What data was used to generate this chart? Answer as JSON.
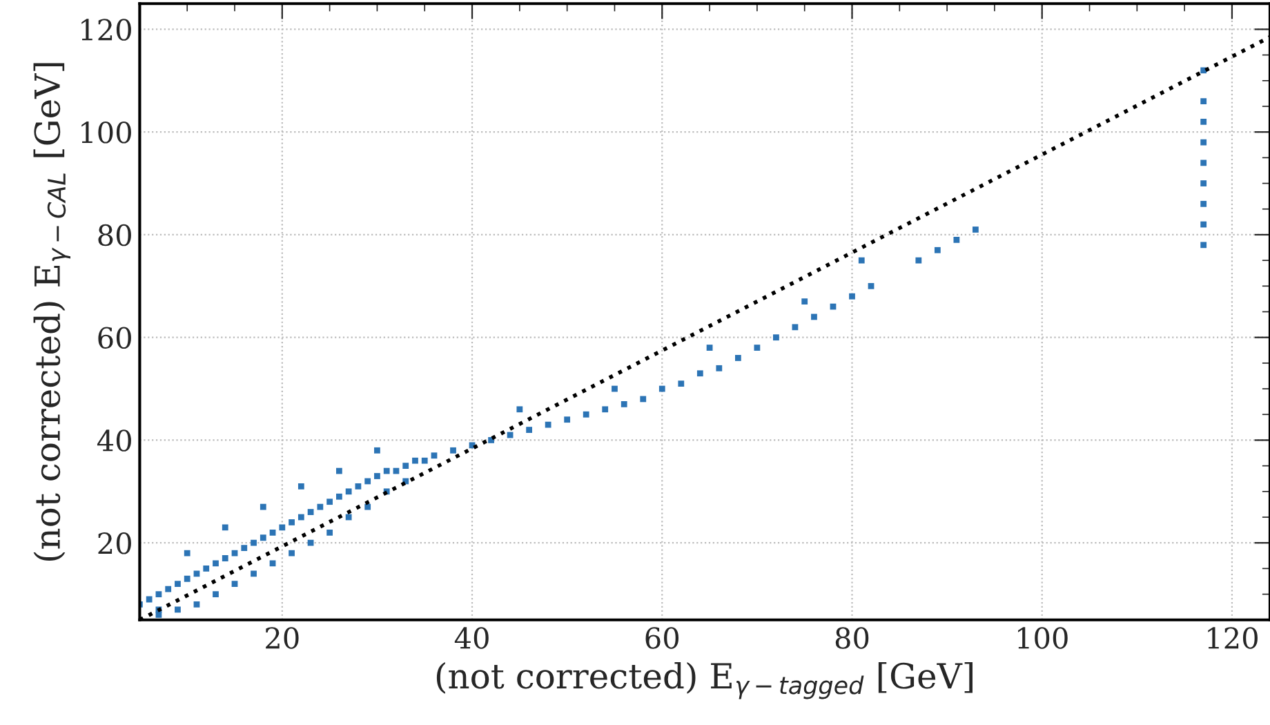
{
  "chart_data": {
    "type": "scatter",
    "xlabel": "(not corrected) E$_{γ−tagged}$ [GeV]",
    "ylabel": "(not corrected) E$_{γ−CAL}$ [GeV]",
    "xlim": [
      5,
      124
    ],
    "ylim": [
      5,
      125
    ],
    "xticks": [
      20,
      40,
      60,
      80,
      100,
      120
    ],
    "yticks": [
      20,
      40,
      60,
      80,
      100,
      120
    ],
    "grid": true,
    "marker": "square",
    "series": [
      {
        "color": "#2c74b5",
        "x": [
          5,
          6,
          7,
          8,
          9,
          10,
          11,
          12,
          13,
          14,
          15,
          16,
          17,
          18,
          19,
          20,
          21,
          22,
          23,
          24,
          25,
          26,
          27,
          28,
          29,
          30,
          31,
          32,
          33,
          34,
          35,
          36,
          38,
          40,
          42,
          44,
          46,
          48,
          50,
          52,
          54,
          56,
          58,
          60,
          62,
          64,
          66,
          68,
          70,
          72,
          74,
          76,
          78,
          80,
          82,
          87,
          89,
          91,
          93,
          7,
          7,
          9,
          11,
          13,
          15,
          17,
          19,
          21,
          23,
          25,
          27,
          29,
          31,
          33,
          10,
          14,
          18,
          22,
          26,
          30,
          45,
          55,
          65,
          75,
          81,
          117,
          117,
          117,
          117,
          117,
          117,
          117,
          117,
          117
        ],
        "values": [
          8,
          9,
          10,
          11,
          12,
          13,
          14,
          15,
          16,
          17,
          18,
          19,
          20,
          21,
          22,
          23,
          24,
          25,
          26,
          27,
          28,
          29,
          30,
          31,
          32,
          33,
          34,
          34,
          35,
          36,
          36,
          37,
          38,
          39,
          40,
          41,
          42,
          43,
          44,
          45,
          46,
          47,
          48,
          50,
          51,
          53,
          54,
          56,
          58,
          60,
          62,
          64,
          66,
          68,
          70,
          75,
          77,
          79,
          81,
          7,
          6,
          7,
          8,
          10,
          12,
          14,
          16,
          18,
          20,
          22,
          25,
          27,
          30,
          32,
          18,
          23,
          27,
          31,
          34,
          38,
          46,
          50,
          58,
          67,
          75,
          78,
          82,
          86,
          90,
          94,
          98,
          102,
          106,
          112
        ]
      },
      {
        "type": "line",
        "color": "#000000",
        "line_style": "dotted",
        "marker": "none",
        "x": [
          5,
          124
        ],
        "values": [
          5,
          118.5
        ]
      }
    ]
  }
}
